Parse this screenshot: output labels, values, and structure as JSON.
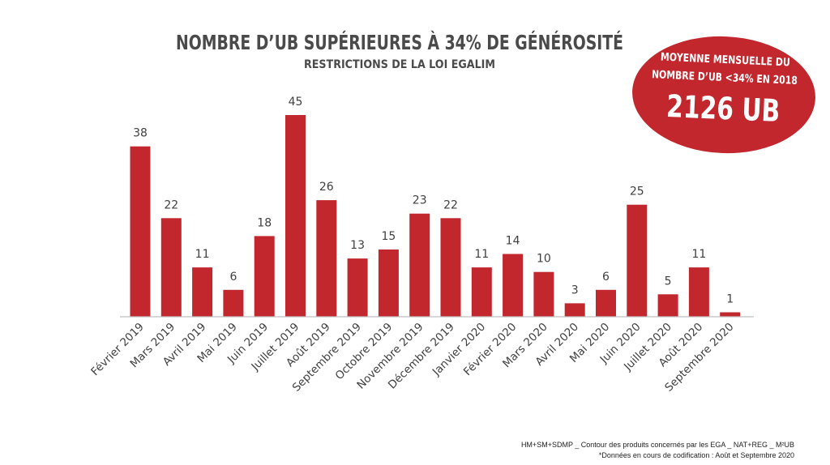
{
  "colors": {
    "bar": "#c1272d",
    "axis": "#bfbfbf",
    "badge": "#c1272d",
    "text": "#404040"
  },
  "chart_data": {
    "type": "bar",
    "title": "NOMBRE D’UB SUPÉRIEURES À 34% DE GÉNÉROSITÉ",
    "subtitle": "RESTRICTIONS DE LA LOI EGALIM",
    "categories": [
      "Février 2019",
      "Mars 2019",
      "Avril 2019",
      "Mai 2019",
      "Juin 2019",
      "Juillet 2019",
      "Août 2019",
      "Septembre 2019",
      "Octobre 2019",
      "Novembre 2019",
      "Décembre 2019",
      "Janvier 2020",
      "Février 2020",
      "Mars 2020",
      "Avril 2020",
      "Mai 2020",
      "Juin 2020",
      "Juillet 2020",
      "Août 2020",
      "Septembre 2020"
    ],
    "values": [
      38,
      22,
      11,
      6,
      18,
      45,
      26,
      13,
      15,
      23,
      22,
      11,
      14,
      10,
      3,
      6,
      25,
      5,
      11,
      1
    ],
    "ylim": [
      0,
      45
    ],
    "grid": false,
    "legend": false
  },
  "badge": {
    "line1": "MOYENNE MENSUELLE DU",
    "line2": "NOMBRE D’UB <34% EN 2018",
    "value": "2126 UB"
  },
  "footnote": {
    "line1": "HM+SM+SDMP _ Contour des produits concernés par les EGA _ NAT+REG _ M²UB",
    "line2": "*Données en cours de codification : Août et Septembre 2020"
  }
}
